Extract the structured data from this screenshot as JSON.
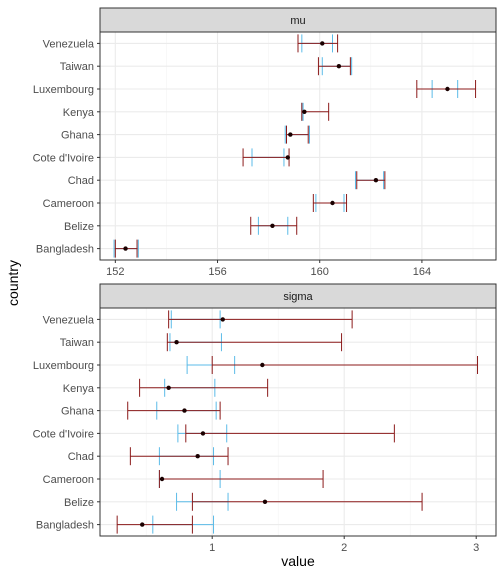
{
  "chart_data": {
    "type": "interval",
    "ylabel": "country",
    "xlabel": "value",
    "categories": [
      "Bangladesh",
      "Belize",
      "Cameroon",
      "Chad",
      "Cote d'Ivoire",
      "Ghana",
      "Kenya",
      "Luxembourg",
      "Taiwan",
      "Venezuela"
    ],
    "colors": {
      "wide_interval": "#8b1a1a",
      "narrow_interval": "#5bbbe8",
      "point": "#1a0000"
    },
    "grid": true,
    "panels": [
      {
        "name": "mu",
        "xlim": [
          151.4,
          166.9
        ],
        "xticks": [
          152,
          156,
          160,
          164
        ],
        "rows": [
          {
            "country": "Bangladesh",
            "point": 152.4,
            "wide": [
              152.0,
              152.85
            ],
            "narrow": [
              151.95,
              152.9
            ]
          },
          {
            "country": "Belize",
            "point": 158.15,
            "wide": [
              157.3,
              159.1
            ],
            "narrow": [
              157.6,
              158.75
            ]
          },
          {
            "country": "Cameroon",
            "point": 160.5,
            "wide": [
              159.75,
              161.05
            ],
            "narrow": [
              159.85,
              160.95
            ]
          },
          {
            "country": "Chad",
            "point": 162.2,
            "wide": [
              161.45,
              162.55
            ],
            "narrow": [
              161.4,
              162.5
            ]
          },
          {
            "country": "Cote d'Ivoire",
            "point": 158.75,
            "wide": [
              157.0,
              158.8
            ],
            "narrow": [
              157.35,
              158.6
            ]
          },
          {
            "country": "Ghana",
            "point": 158.85,
            "wide": [
              158.7,
              159.55
            ],
            "narrow": [
              158.65,
              159.6
            ]
          },
          {
            "country": "Kenya",
            "point": 159.4,
            "wide": [
              159.3,
              160.35
            ],
            "narrow": [
              159.35,
              159.3
            ]
          },
          {
            "country": "Luxembourg",
            "point": 165.0,
            "wide": [
              163.8,
              166.1
            ],
            "narrow": [
              164.4,
              165.4
            ]
          },
          {
            "country": "Taiwan",
            "point": 160.75,
            "wide": [
              159.95,
              161.2
            ],
            "narrow": [
              160.1,
              161.25
            ]
          },
          {
            "country": "Venezuela",
            "point": 160.1,
            "wide": [
              159.15,
              160.7
            ],
            "narrow": [
              159.3,
              160.5
            ]
          }
        ]
      },
      {
        "name": "sigma",
        "xlim": [
          0.15,
          3.15
        ],
        "xticks": [
          1,
          2,
          3
        ],
        "rows": [
          {
            "country": "Bangladesh",
            "point": 0.47,
            "wide": [
              0.28,
              0.85
            ],
            "narrow": [
              0.55,
              1.01
            ]
          },
          {
            "country": "Belize",
            "point": 1.4,
            "wide": [
              0.85,
              2.59
            ],
            "narrow": [
              0.73,
              1.12
            ]
          },
          {
            "country": "Cameroon",
            "point": 0.62,
            "wide": [
              0.6,
              1.84
            ],
            "narrow": [
              0.6,
              1.06
            ]
          },
          {
            "country": "Chad",
            "point": 0.89,
            "wide": [
              0.38,
              1.12
            ],
            "narrow": [
              0.6,
              1.01
            ]
          },
          {
            "country": "Cote d'Ivoire",
            "point": 0.93,
            "wide": [
              0.8,
              2.38
            ],
            "narrow": [
              0.74,
              1.11
            ]
          },
          {
            "country": "Ghana",
            "point": 0.79,
            "wide": [
              0.36,
              1.06
            ],
            "narrow": [
              0.58,
              1.03
            ]
          },
          {
            "country": "Kenya",
            "point": 0.67,
            "wide": [
              0.45,
              1.42
            ],
            "narrow": [
              0.64,
              1.02
            ]
          },
          {
            "country": "Luxembourg",
            "point": 1.38,
            "wide": [
              1.0,
              3.01
            ],
            "narrow": [
              0.81,
              1.17
            ]
          },
          {
            "country": "Taiwan",
            "point": 0.73,
            "wide": [
              0.66,
              1.98
            ],
            "narrow": [
              0.68,
              1.07
            ]
          },
          {
            "country": "Venezuela",
            "point": 1.08,
            "wide": [
              0.67,
              2.06
            ],
            "narrow": [
              0.69,
              1.06
            ]
          }
        ]
      }
    ]
  }
}
